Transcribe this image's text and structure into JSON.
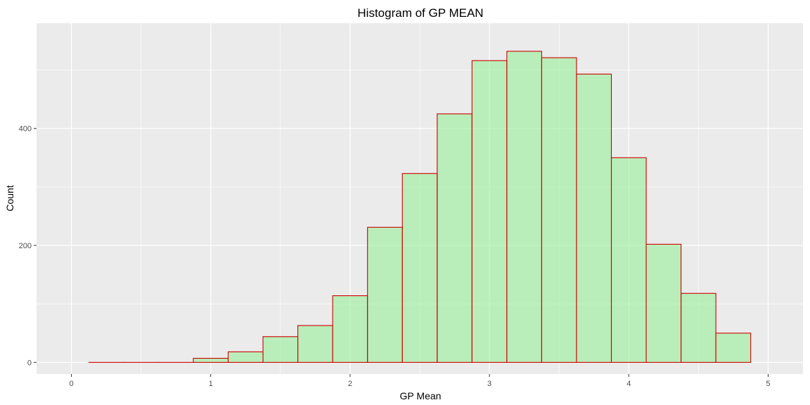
{
  "chart_data": {
    "type": "bar",
    "title": "Histogram of GP MEAN",
    "xlabel": "GP Mean",
    "ylabel": "Count",
    "xlim": [
      -0.25,
      5.25
    ],
    "ylim": [
      -20,
      580
    ],
    "x_ticks": [
      0,
      1,
      2,
      3,
      4,
      5
    ],
    "y_ticks": [
      0,
      200,
      400
    ],
    "grid": true,
    "bin_width": 0.25,
    "bins": [
      {
        "x0": 0.125,
        "x1": 0.375,
        "count": 0
      },
      {
        "x0": 0.375,
        "x1": 0.625,
        "count": 0
      },
      {
        "x0": 0.625,
        "x1": 0.875,
        "count": 0
      },
      {
        "x0": 0.875,
        "x1": 1.125,
        "count": 7
      },
      {
        "x0": 1.125,
        "x1": 1.375,
        "count": 18
      },
      {
        "x0": 1.375,
        "x1": 1.625,
        "count": 44
      },
      {
        "x0": 1.625,
        "x1": 1.875,
        "count": 63
      },
      {
        "x0": 1.875,
        "x1": 2.125,
        "count": 114
      },
      {
        "x0": 2.125,
        "x1": 2.375,
        "count": 231
      },
      {
        "x0": 2.375,
        "x1": 2.625,
        "count": 323
      },
      {
        "x0": 2.625,
        "x1": 2.875,
        "count": 425
      },
      {
        "x0": 2.875,
        "x1": 3.125,
        "count": 516
      },
      {
        "x0": 3.125,
        "x1": 3.375,
        "count": 532
      },
      {
        "x0": 3.375,
        "x1": 3.625,
        "count": 521
      },
      {
        "x0": 3.625,
        "x1": 3.875,
        "count": 493
      },
      {
        "x0": 3.875,
        "x1": 4.125,
        "count": 350
      },
      {
        "x0": 4.125,
        "x1": 4.375,
        "count": 202
      },
      {
        "x0": 4.375,
        "x1": 4.625,
        "count": 118
      },
      {
        "x0": 4.625,
        "x1": 4.875,
        "count": 50
      }
    ],
    "colors": {
      "bar_fill": "#90EE90",
      "bar_stroke": "#CC0000",
      "panel": "#EBEBEB",
      "grid": "#FFFFFF"
    }
  }
}
